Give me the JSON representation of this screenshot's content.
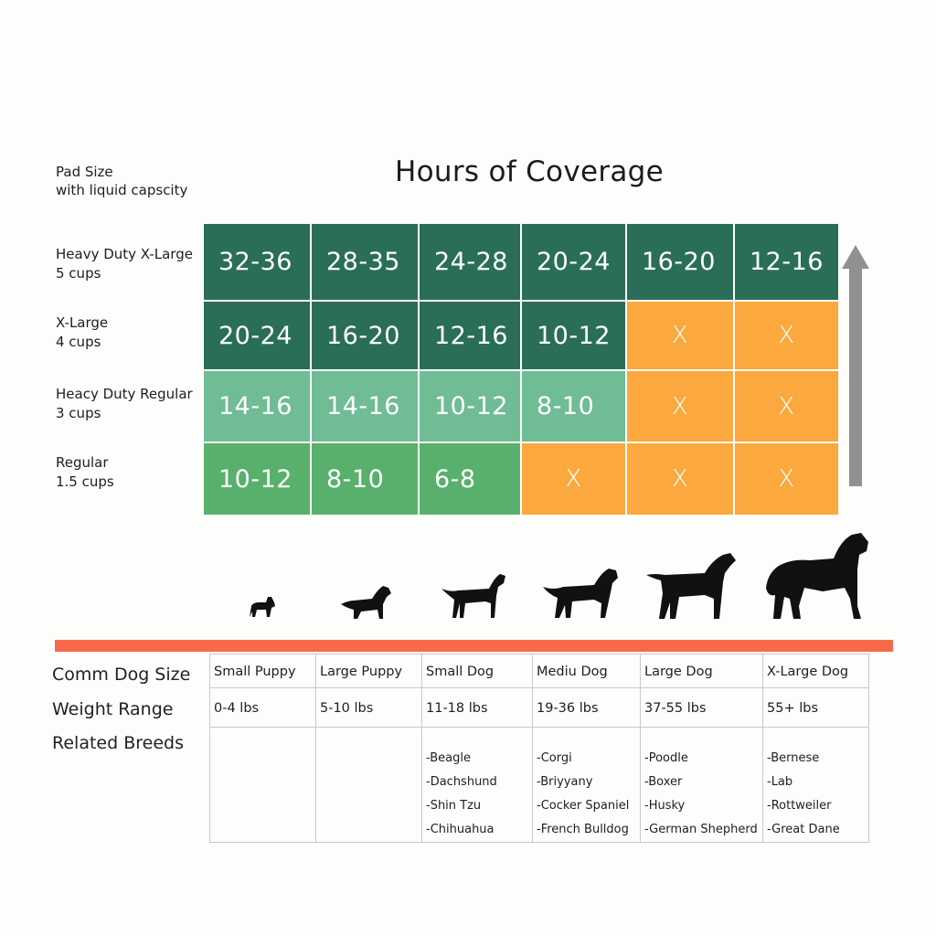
{
  "pad_size_label": {
    "line1": "Pad Size",
    "line2": "with liquid capscity"
  },
  "title": "Hours of Coverage",
  "pad_rows": [
    {
      "name": "Heavy Duty X-Large",
      "capacity": "5 cups",
      "cells": [
        {
          "text": "32-36",
          "color": "dark"
        },
        {
          "text": "28-35",
          "color": "dark"
        },
        {
          "text": "24-28",
          "color": "dark"
        },
        {
          "text": "20-24",
          "color": "dark"
        },
        {
          "text": "16-20",
          "color": "dark"
        },
        {
          "text": "12-16",
          "color": "dark"
        }
      ]
    },
    {
      "name": "X-Large",
      "capacity": "4 cups",
      "cells": [
        {
          "text": "20-24",
          "color": "dark"
        },
        {
          "text": "16-20",
          "color": "dark"
        },
        {
          "text": "12-16",
          "color": "dark"
        },
        {
          "text": "10-12",
          "color": "dark"
        },
        {
          "text": "X",
          "color": "orange"
        },
        {
          "text": "X",
          "color": "orange"
        }
      ]
    },
    {
      "name": "Heacy Duty Regular",
      "capacity": "3 cups",
      "cells": [
        {
          "text": "14-16",
          "color": "mid"
        },
        {
          "text": "14-16",
          "color": "mid"
        },
        {
          "text": "10-12",
          "color": "mid"
        },
        {
          "text": "8-10",
          "color": "mid"
        },
        {
          "text": "X",
          "color": "orange"
        },
        {
          "text": "X",
          "color": "orange"
        }
      ]
    },
    {
      "name": "Regular",
      "capacity": "1.5 cups",
      "cells": [
        {
          "text": "10-12",
          "color": "green"
        },
        {
          "text": "8-10",
          "color": "green"
        },
        {
          "text": "6-8",
          "color": "green"
        },
        {
          "text": "X",
          "color": "orange"
        },
        {
          "text": "X",
          "color": "orange"
        },
        {
          "text": "X",
          "color": "orange"
        }
      ]
    }
  ],
  "colors": {
    "dark": "#2a6e58",
    "mid": "#6fbc95",
    "green": "#58b06c",
    "orange": "#fba83e",
    "red_bar": "#f8694b",
    "arrow": "#909090"
  },
  "arrow_icon": "arrow-up-icon",
  "left_headers": {
    "size": "Comm Dog Size",
    "weight": "Weight Range",
    "breeds": "Related Breeds"
  },
  "dog_columns": [
    {
      "size": "Small Puppy",
      "weight": "0-4 lbs",
      "breeds": []
    },
    {
      "size": "Large Puppy",
      "weight": "5-10 lbs",
      "breeds": []
    },
    {
      "size": "Small Dog",
      "weight": "11-18 lbs",
      "breeds": [
        "-Beagle",
        "-Dachshund",
        "-Shin Tzu",
        "-Chihuahua"
      ]
    },
    {
      "size": "Mediu Dog",
      "weight": "19-36 lbs",
      "breeds": [
        "-Corgi",
        "-Briyyany",
        "-Cocker Spaniel",
        "-French Bulldog"
      ]
    },
    {
      "size": "Large Dog",
      "weight": "37-55 lbs",
      "breeds": [
        "-Poodle",
        "-Boxer",
        "-Husky",
        "-German Shepherd"
      ]
    },
    {
      "size": "X-Large Dog",
      "weight": "55+ lbs",
      "breeds": [
        "-Bernese",
        "-Lab",
        "-Rottweiler",
        "-Great Dane"
      ]
    }
  ]
}
